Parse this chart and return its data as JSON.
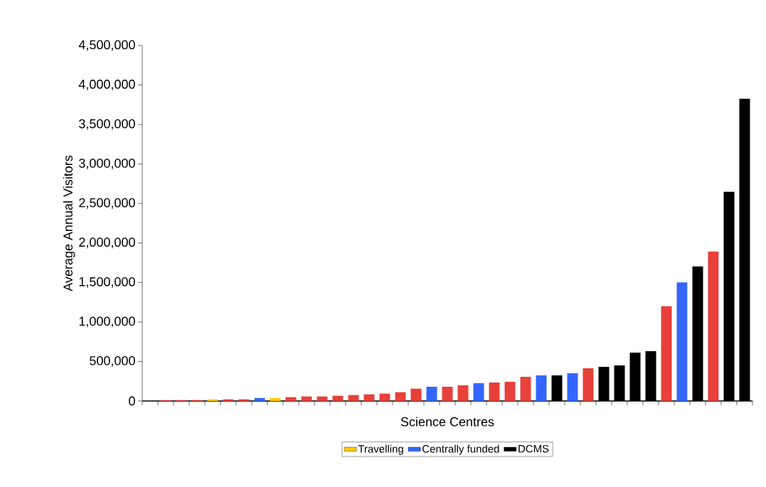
{
  "chart_data": {
    "type": "bar",
    "xlabel": "Science Centres",
    "ylabel": "Average Annual Visitors",
    "categories": [
      null,
      null,
      null,
      null,
      null,
      null,
      null,
      null,
      null,
      null,
      null,
      null,
      null,
      null,
      null,
      null,
      null,
      null,
      null,
      null,
      null,
      null,
      null,
      null,
      null,
      null,
      null,
      null,
      null,
      null,
      null,
      null,
      null,
      null,
      null,
      null,
      null,
      null,
      null
    ],
    "series": [
      {
        "color": "#e8403a",
        "values": [
          null,
          12000,
          12000,
          12000,
          null,
          21000,
          21000,
          null,
          null,
          48000,
          57000,
          57000,
          66000,
          75000,
          84000,
          93000,
          111000,
          156000,
          null,
          180000,
          198000,
          null,
          234000,
          243000,
          306000,
          null,
          null,
          null,
          414000,
          null,
          null,
          null,
          null,
          1200000,
          null,
          null,
          1893000,
          null,
          null
        ]
      },
      {
        "name": "Travelling",
        "color": "#ffcc00",
        "values": [
          null,
          null,
          null,
          null,
          21000,
          null,
          null,
          null,
          39000,
          null,
          null,
          null,
          null,
          null,
          null,
          null,
          null,
          null,
          null,
          null,
          null,
          null,
          null,
          null,
          null,
          null,
          null,
          null,
          null,
          null,
          null,
          null,
          null,
          null,
          null,
          null,
          null,
          null,
          null
        ]
      },
      {
        "name": "Centrally funded",
        "color": "#3366ff",
        "values": [
          null,
          null,
          null,
          null,
          null,
          null,
          null,
          39000,
          null,
          null,
          null,
          null,
          null,
          null,
          null,
          null,
          null,
          null,
          180000,
          null,
          null,
          225000,
          null,
          null,
          null,
          324000,
          null,
          351000,
          null,
          null,
          null,
          null,
          null,
          null,
          1500000,
          null,
          null,
          null,
          null
        ]
      },
      {
        "name": "DCMS",
        "color": "#000000",
        "values": [
          null,
          null,
          null,
          null,
          null,
          null,
          null,
          null,
          null,
          null,
          null,
          null,
          null,
          null,
          null,
          null,
          null,
          null,
          null,
          null,
          null,
          null,
          null,
          null,
          null,
          null,
          324000,
          null,
          null,
          432000,
          450000,
          612000,
          630000,
          null,
          null,
          1704000,
          null,
          2649000,
          3828000
        ]
      }
    ],
    "ylim": [
      0,
      4500000
    ],
    "yticks": [
      0,
      {
        "value": 500000,
        "label": "500,000"
      },
      {
        "value": 1000000,
        "label": "1,000,000"
      },
      {
        "value": 1500000,
        "label": "1,500,000"
      },
      {
        "value": 2000000,
        "label": "2,000,000"
      },
      {
        "value": 2500000,
        "label": "2,500,000"
      },
      {
        "value": 3000000,
        "label": "3,000,000"
      },
      {
        "value": 3500000,
        "label": "3,500,000"
      },
      {
        "value": 4000000,
        "label": "4,000,000"
      },
      {
        "value": 4500000,
        "label": "4,500,000"
      }
    ],
    "legend": "bottom",
    "grid": false
  }
}
